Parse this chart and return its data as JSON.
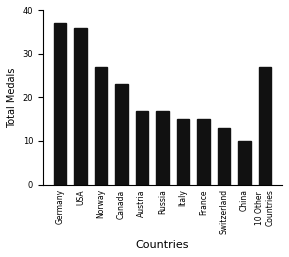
{
  "categories": [
    "Germany",
    "USA",
    "Norway",
    "Canada",
    "Austria",
    "Russia",
    "Italy",
    "France",
    "Switzerland",
    "China",
    "10 Other\nCountries"
  ],
  "values": [
    37,
    36,
    27,
    23,
    17,
    17,
    15,
    15,
    13,
    10,
    27
  ],
  "bar_color": "#111111",
  "title": "",
  "xlabel": "Countries",
  "ylabel": "Total Medals",
  "ylim": [
    0,
    40
  ],
  "yticks": [
    0,
    10,
    20,
    30,
    40
  ],
  "figsize": [
    2.89,
    2.57
  ],
  "dpi": 100,
  "bar_width": 0.6,
  "xlabel_fontsize": 8,
  "ylabel_fontsize": 7,
  "tick_fontsize": 6,
  "xtick_fontsize": 5.5
}
